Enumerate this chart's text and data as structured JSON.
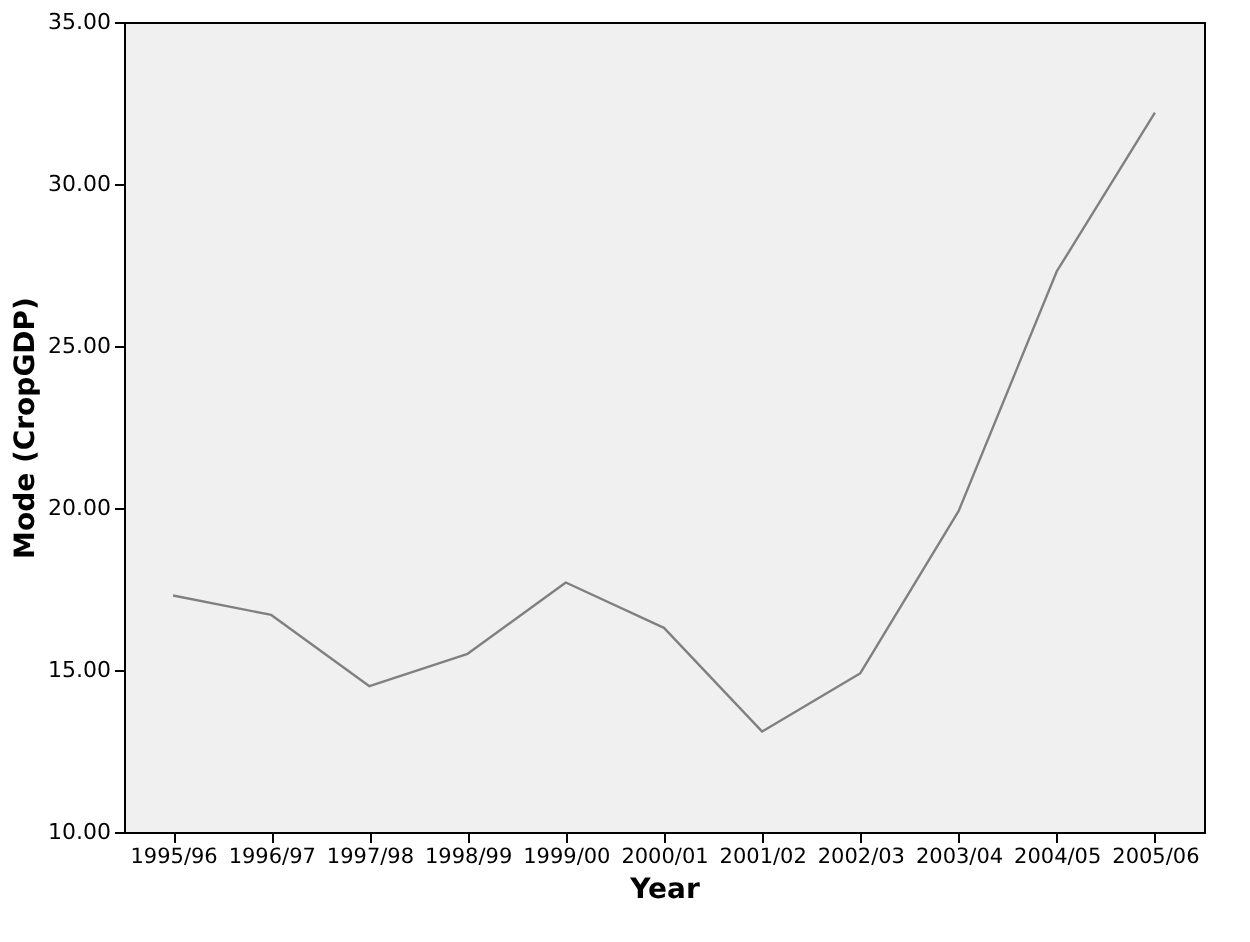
{
  "chart_data": {
    "type": "line",
    "xlabel": "Year",
    "ylabel": "Mode (CropGDP)",
    "categories": [
      "1995/96",
      "1996/97",
      "1997/98",
      "1998/99",
      "1999/00",
      "2000/01",
      "2001/02",
      "2002/03",
      "2003/04",
      "2004/05",
      "2005/06"
    ],
    "series": [
      {
        "color": "#808080",
        "values": [
          17.3,
          16.7,
          14.5,
          15.5,
          17.7,
          16.3,
          13.1,
          14.9,
          19.9,
          27.3,
          32.2
        ]
      }
    ],
    "ylim": [
      10,
      35
    ],
    "yticks": [
      {
        "value": 10,
        "label": "10.00"
      },
      {
        "value": 15,
        "label": "15.00"
      },
      {
        "value": 20,
        "label": "20.00"
      },
      {
        "value": 25,
        "label": "25.00"
      },
      {
        "value": 30,
        "label": "30.00"
      },
      {
        "value": 35,
        "label": "35.00"
      }
    ],
    "grid": false,
    "marker": "none",
    "line_style": "solid"
  }
}
